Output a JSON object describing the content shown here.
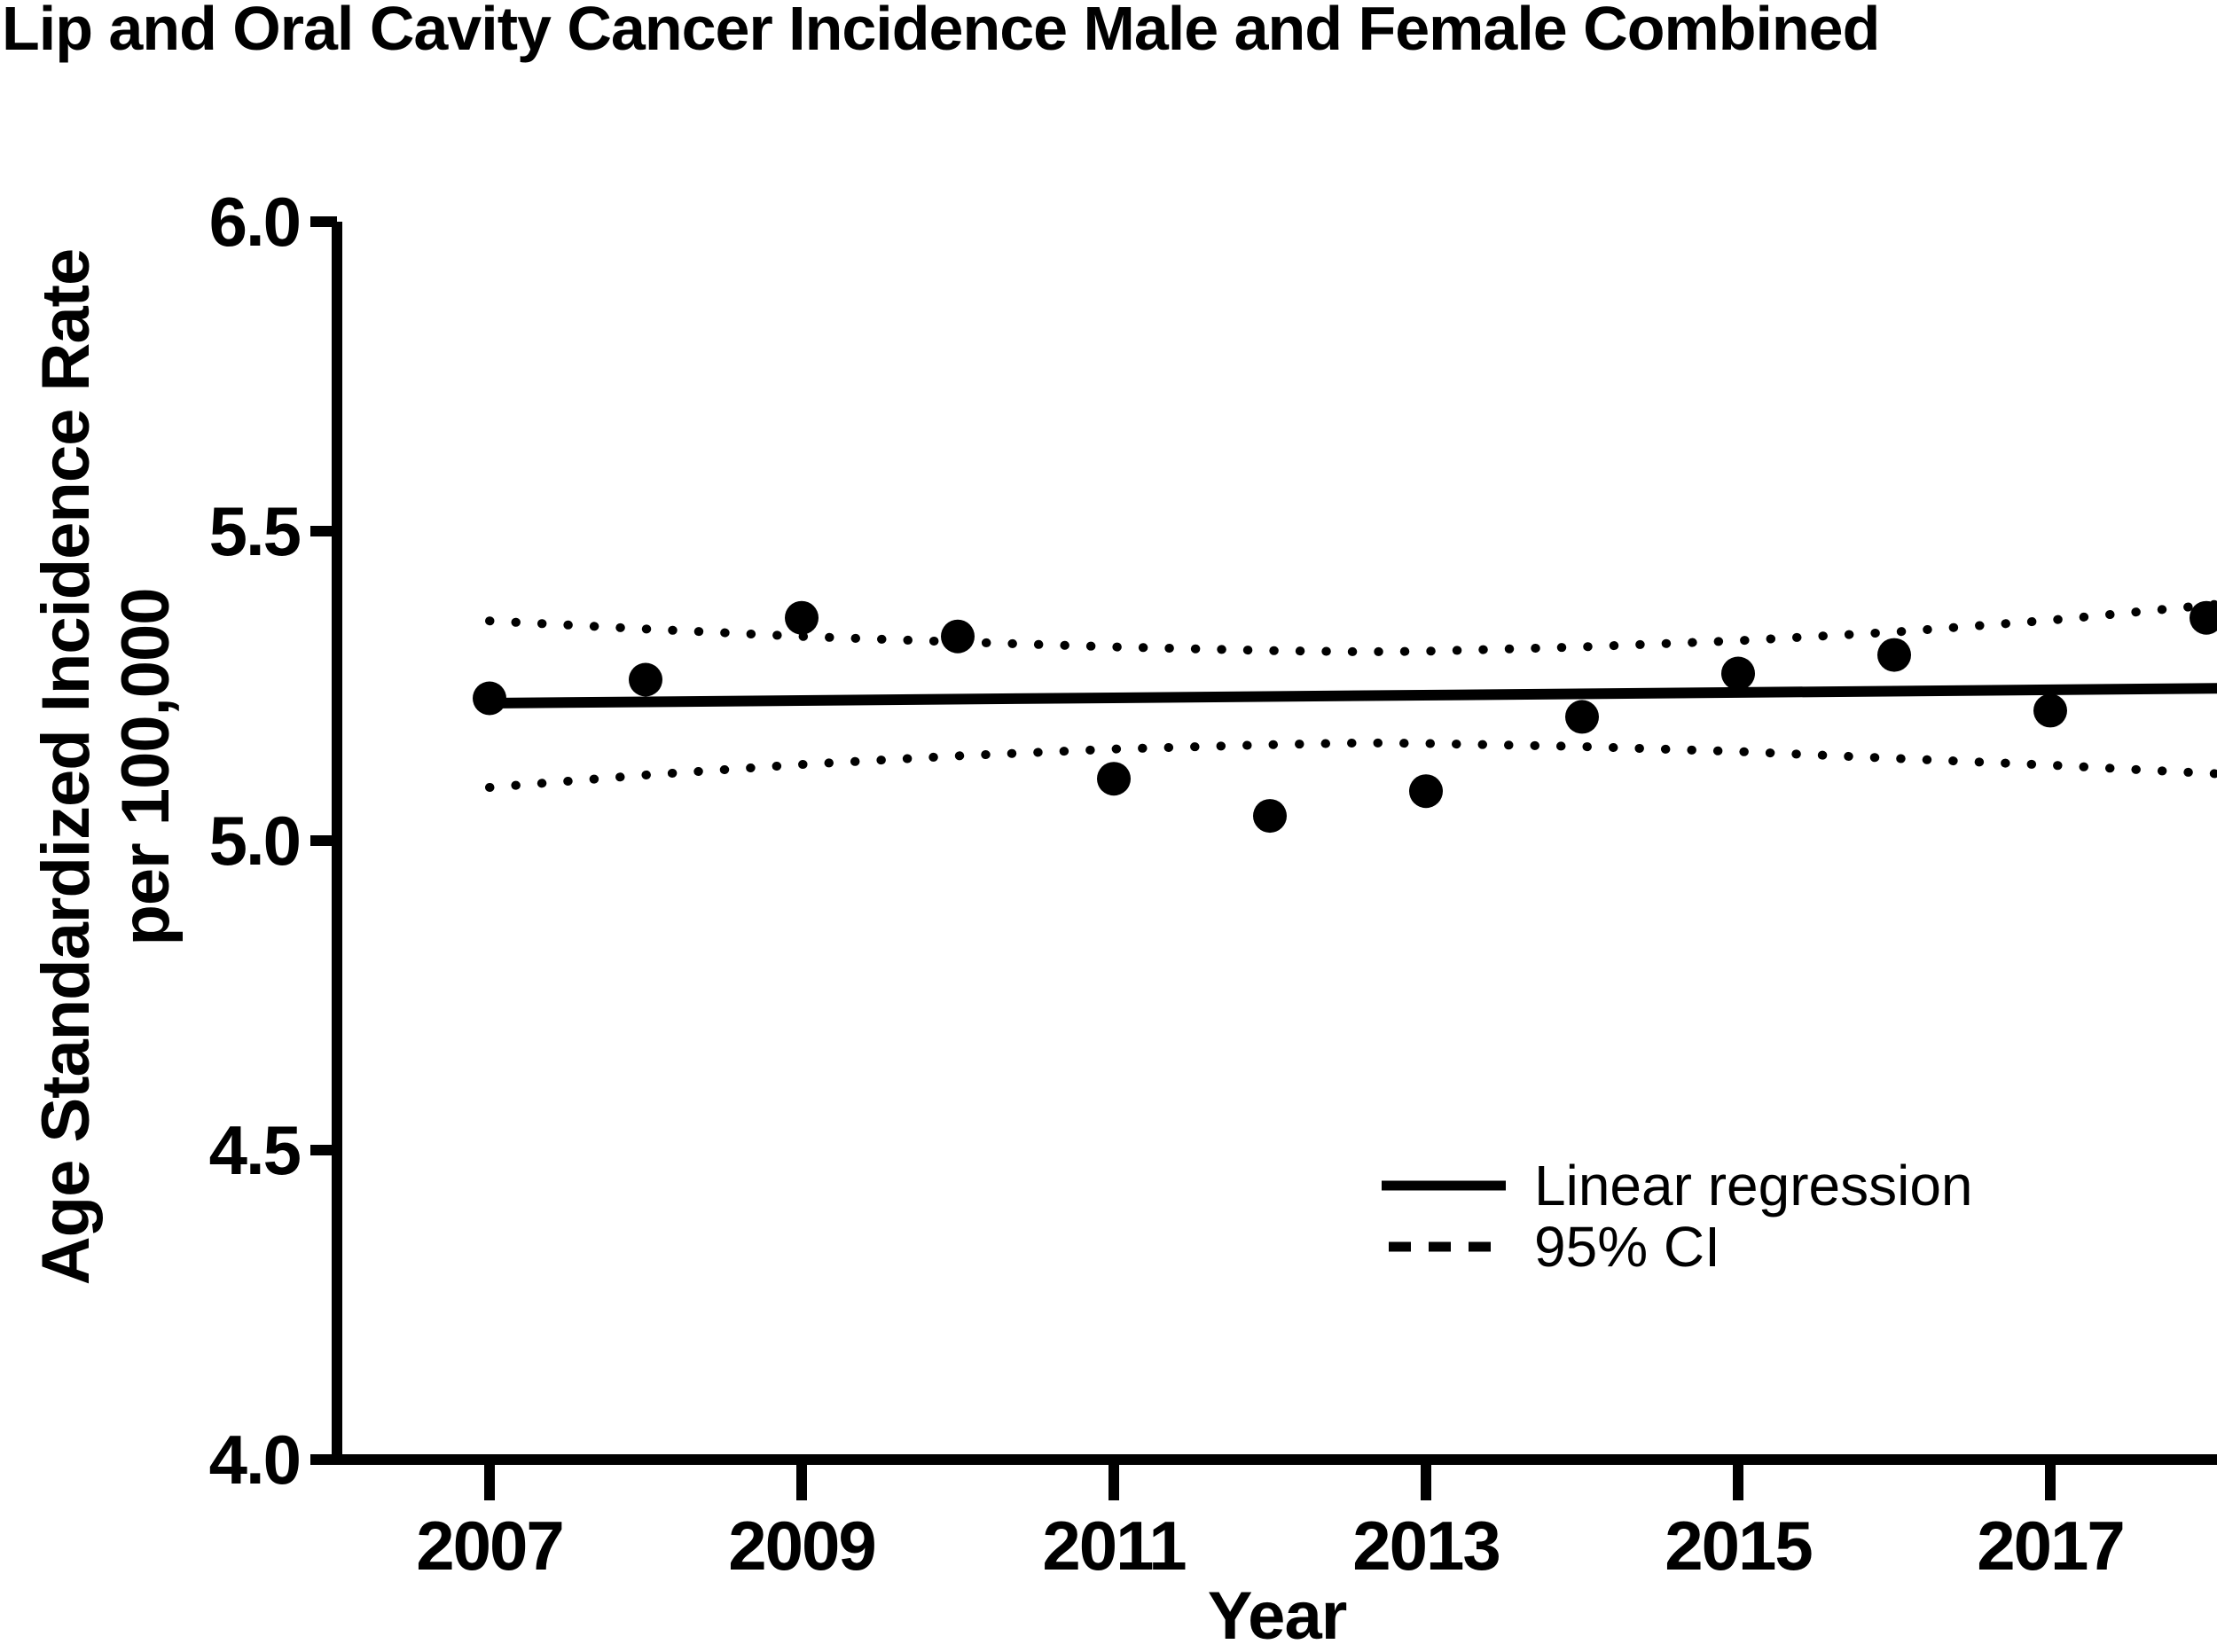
{
  "title": "Lip and Oral Cavity Cancer Incidence Male and Female Combined",
  "chart_data": {
    "type": "scatter",
    "title": "Lip and Oral Cavity Cancer Incidence Male and Female Combined",
    "xlabel": "Year",
    "ylabel_line1": "Age Standardized Incidence Rate",
    "ylabel_line2": "per 100,000",
    "xlim": [
      2006.02,
      2018.07
    ],
    "ylim": [
      4.0,
      6.0
    ],
    "grid": false,
    "x_tick_years": [
      2007,
      2009,
      2011,
      2013,
      2015,
      2017
    ],
    "y_tick_values": [
      6.0,
      5.5,
      5.0,
      4.5,
      4.0
    ],
    "y_tick_labels": [
      "6.0",
      "5.5",
      "5.0",
      "4.5",
      "4.0"
    ],
    "points": {
      "years": [
        2007,
        2008,
        2009,
        2010,
        2011,
        2012,
        2013,
        2014,
        2015,
        2016,
        2017,
        2018
      ],
      "values": [
        5.23,
        5.26,
        5.36,
        5.33,
        5.1,
        5.04,
        5.08,
        5.2,
        5.27,
        5.3,
        5.21,
        5.36
      ]
    },
    "regression": {
      "x": [
        2007,
        2018.07
      ],
      "y": [
        5.222,
        5.246
      ]
    },
    "ci_upper": [
      [
        2007,
        5.355
      ],
      [
        2008,
        5.342
      ],
      [
        2009,
        5.33
      ],
      [
        2010,
        5.321
      ],
      [
        2011,
        5.313
      ],
      [
        2012,
        5.307
      ],
      [
        2012.6,
        5.305
      ],
      [
        2013,
        5.306
      ],
      [
        2014,
        5.313
      ],
      [
        2015,
        5.323
      ],
      [
        2016,
        5.337
      ],
      [
        2017,
        5.356
      ],
      [
        2018.07,
        5.382
      ]
    ],
    "ci_lower": [
      [
        2007,
        5.086
      ],
      [
        2008,
        5.106
      ],
      [
        2009,
        5.123
      ],
      [
        2010,
        5.137
      ],
      [
        2011,
        5.148
      ],
      [
        2012,
        5.155
      ],
      [
        2012.6,
        5.158
      ],
      [
        2013,
        5.157
      ],
      [
        2014,
        5.152
      ],
      [
        2015,
        5.144
      ],
      [
        2016,
        5.133
      ],
      [
        2017,
        5.122
      ],
      [
        2018.07,
        5.108
      ]
    ],
    "legend": [
      {
        "label": "Linear regression",
        "style": "solid"
      },
      {
        "label": "95% CI",
        "style": "dashed"
      }
    ],
    "marker_color": "#000000",
    "line_color": "#000000",
    "background_color": "#ffffff"
  }
}
